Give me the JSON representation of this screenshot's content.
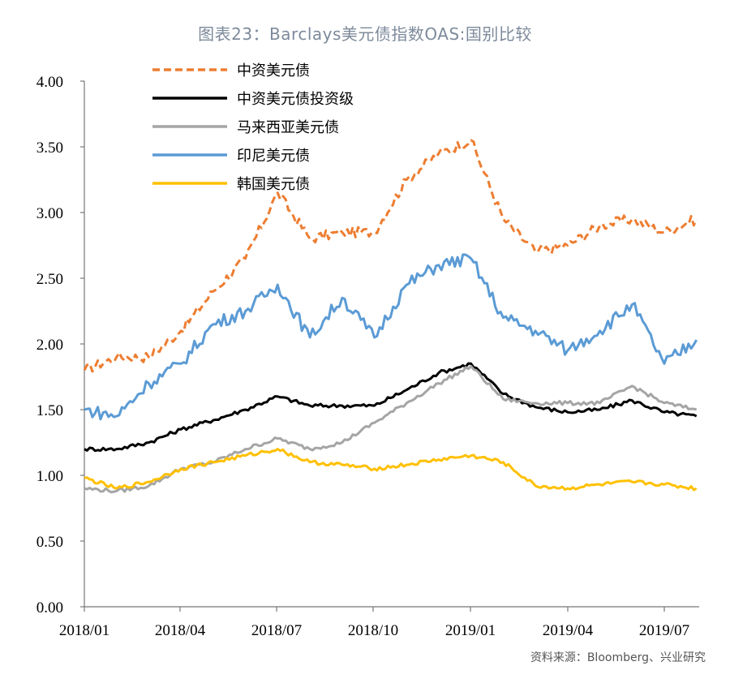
{
  "title": "图表23：Barclays美元债指数OAS:国别比较",
  "source": "资料来源：Bloomberg、兴业研究",
  "chart_data": {
    "type": "line",
    "title": "图表23：Barclays美元债指数OAS:国别比较",
    "xlabel": "",
    "ylabel": "",
    "ylim": [
      0,
      4
    ],
    "y_ticks": [
      "0.00",
      "0.50",
      "1.00",
      "1.50",
      "2.00",
      "2.50",
      "3.00",
      "3.50",
      "4.00"
    ],
    "x_ticks": [
      "2018/01",
      "2018/04",
      "2018/07",
      "2018/10",
      "2019/01",
      "2019/04",
      "2019/07"
    ],
    "legend_position": "top-left",
    "grid": false,
    "x": [
      "2018/01",
      "2018/02",
      "2018/03",
      "2018/04",
      "2018/05",
      "2018/06",
      "2018/07",
      "2018/08",
      "2018/09",
      "2018/10",
      "2018/11",
      "2018/12",
      "2019/01",
      "2019/02",
      "2019/03",
      "2019/04",
      "2019/05",
      "2019/06",
      "2019/07",
      "2019/08"
    ],
    "series": [
      {
        "name": "中资美元债",
        "color": "#ED7D31",
        "dash": true,
        "values": [
          1.8,
          1.9,
          1.9,
          2.1,
          2.4,
          2.65,
          3.15,
          2.8,
          2.85,
          2.85,
          3.25,
          3.45,
          3.55,
          2.95,
          2.7,
          2.75,
          2.9,
          2.95,
          2.85,
          2.95
        ]
      },
      {
        "name": "中资美元债投资级",
        "color": "#000000",
        "dash": false,
        "values": [
          1.2,
          1.2,
          1.25,
          1.35,
          1.42,
          1.5,
          1.6,
          1.53,
          1.53,
          1.53,
          1.65,
          1.78,
          1.85,
          1.62,
          1.52,
          1.48,
          1.5,
          1.57,
          1.48,
          1.45
        ]
      },
      {
        "name": "马来西亚美元债",
        "color": "#A5A5A5",
        "dash": false,
        "values": [
          0.9,
          0.88,
          0.92,
          1.05,
          1.1,
          1.2,
          1.28,
          1.2,
          1.25,
          1.4,
          1.55,
          1.7,
          1.83,
          1.58,
          1.55,
          1.55,
          1.55,
          1.68,
          1.55,
          1.5
        ]
      },
      {
        "name": "印尼美元债",
        "color": "#5B9BD5",
        "dash": false,
        "values": [
          1.5,
          1.45,
          1.7,
          1.85,
          2.15,
          2.25,
          2.45,
          2.05,
          2.35,
          2.05,
          2.45,
          2.6,
          2.65,
          2.2,
          2.1,
          1.95,
          2.1,
          2.3,
          1.85,
          2.03
        ]
      },
      {
        "name": "韩国美元债",
        "color": "#FFC000",
        "dash": false,
        "values": [
          0.98,
          0.9,
          0.95,
          1.05,
          1.1,
          1.15,
          1.2,
          1.1,
          1.08,
          1.05,
          1.08,
          1.12,
          1.15,
          1.1,
          0.92,
          0.9,
          0.93,
          0.95,
          0.93,
          0.9
        ]
      }
    ]
  }
}
